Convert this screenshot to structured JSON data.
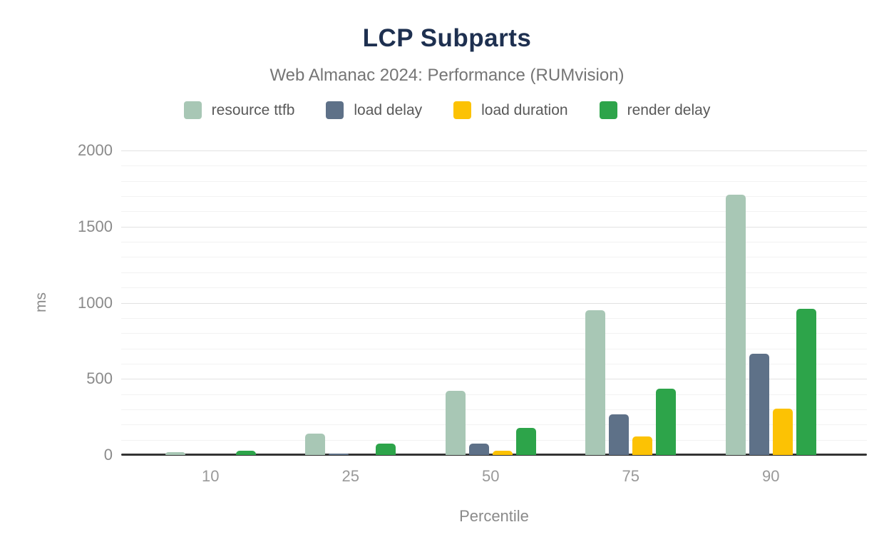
{
  "figure": {
    "title": "LCP Subparts",
    "subtitle": "Web Almanac 2024: Performance (RUMvision)"
  },
  "colors": {
    "title": "#1e3050",
    "subtitle": "#757575",
    "axis_line": "#333333",
    "grid_minor": "#f2f2f2",
    "grid_major": "#e2e2e2",
    "y_tick_label": "#8a8a8a",
    "x_tick_label": "#999999"
  },
  "chart_data": {
    "type": "bar",
    "title": "LCP Subparts",
    "subtitle": "Web Almanac 2024: Performance (RUMvision)",
    "xlabel": "Percentile",
    "ylabel": "ms",
    "categories": [
      "10",
      "25",
      "50",
      "75",
      "90"
    ],
    "series": [
      {
        "name": "resource ttfb",
        "color": "#a8c7b5",
        "values": [
          20,
          140,
          420,
          950,
          1710
        ]
      },
      {
        "name": "load delay",
        "color": "#5e7188",
        "values": [
          0,
          8,
          75,
          265,
          665
        ]
      },
      {
        "name": "load duration",
        "color": "#fcc204",
        "values": [
          0,
          0,
          30,
          120,
          305
        ]
      },
      {
        "name": "render delay",
        "color": "#2da44a",
        "values": [
          30,
          75,
          180,
          435,
          960
        ]
      }
    ],
    "ylim": [
      0,
      2000
    ],
    "yticks": [
      0,
      500,
      1000,
      1500,
      2000
    ],
    "grid": {
      "minor_step": 100,
      "major_step": 500,
      "orientation": "horizontal"
    },
    "legend_position": "top"
  }
}
